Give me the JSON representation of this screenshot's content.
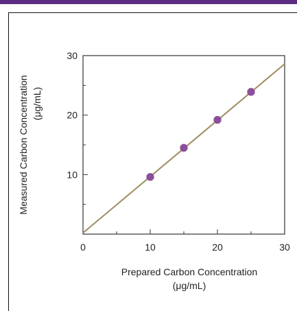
{
  "colors": {
    "top_bar": "#5a2d82",
    "line": "#9e8a5e",
    "point": "#8b4e9b",
    "axis": "#333333",
    "text": "#222222"
  },
  "chart_data": {
    "type": "scatter",
    "title": "",
    "xlabel": "Prepared Carbon Concentration",
    "xlabel_unit": "(μg/mL)",
    "ylabel": "Measured Carbon Concentration",
    "ylabel_unit": "(μg/mL)",
    "xlim": [
      0,
      30
    ],
    "ylim": [
      0,
      30
    ],
    "x_ticks": [
      0,
      10,
      20,
      30
    ],
    "y_ticks": [
      10,
      20,
      30
    ],
    "x_tick_labels": [
      "0",
      "10",
      "20",
      "30"
    ],
    "y_tick_labels": [
      "10",
      "20",
      "30"
    ],
    "grid": false,
    "series": [
      {
        "points": [
          {
            "x": 10,
            "y": 9.6
          },
          {
            "x": 15,
            "y": 14.5
          },
          {
            "x": 20,
            "y": 19.2
          },
          {
            "x": 25,
            "y": 23.9
          }
        ]
      }
    ],
    "fit_line": {
      "x": [
        0,
        30
      ],
      "y": [
        0.2,
        28.6
      ]
    }
  }
}
